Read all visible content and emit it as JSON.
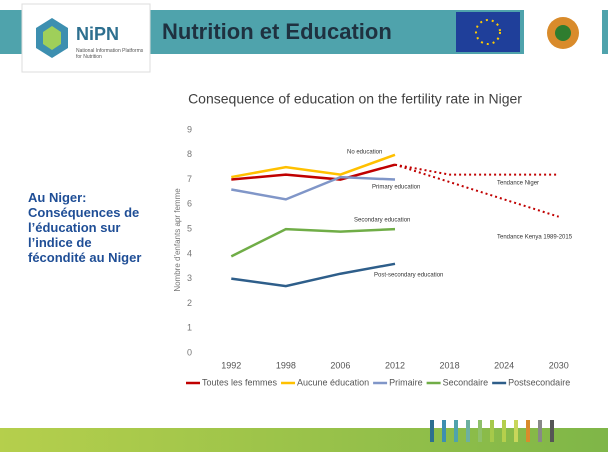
{
  "header": {
    "logo_name": "NiPN",
    "logo_subtitle": "National Information Platforms for Nutrition",
    "title": "Nutrition et Education"
  },
  "side_text": "Au Niger: Conséquences de l’éducation sur l’indice de fécondité au Niger",
  "chart_data": {
    "type": "line",
    "title": "Consequence of education on the fertility rate in Niger",
    "y_label": "Nombre d'enfants apr femme",
    "categories": [
      "1992",
      "1998",
      "2006",
      "2012",
      "2018",
      "2024",
      "2030"
    ],
    "series": [
      {
        "name": "Toutes les femmes",
        "color": "#c00000",
        "values": [
          7.0,
          7.2,
          7.0,
          7.6,
          null,
          null,
          null
        ]
      },
      {
        "name": "Aucune éducation",
        "color": "#ffc000",
        "values": [
          7.1,
          7.5,
          7.2,
          8.0,
          null,
          null,
          null
        ]
      },
      {
        "name": "Primaire",
        "color": "#8096c8",
        "values": [
          6.6,
          6.2,
          7.1,
          7.0,
          null,
          null,
          null
        ]
      },
      {
        "name": "Secondaire",
        "color": "#70ad47",
        "values": [
          3.9,
          5.0,
          4.9,
          5.0,
          null,
          null,
          null
        ]
      },
      {
        "name": "Postsecondaire",
        "color": "#2e5e8a",
        "values": [
          3.0,
          2.7,
          3.2,
          3.6,
          null,
          null,
          null
        ]
      }
    ],
    "trends": [
      {
        "name": "Tendance Niger",
        "color": "#c00000",
        "values": [
          null,
          null,
          null,
          7.6,
          7.2,
          7.2,
          7.2
        ]
      },
      {
        "name": "Tendance Kenya 1989-2015",
        "color": "#c00000",
        "values": [
          null,
          null,
          null,
          7.6,
          6.9,
          6.2,
          5.5
        ]
      }
    ],
    "annotations": [
      "No education",
      "Primary education",
      "Secondary education",
      "Post-secondary education"
    ],
    "ylim": [
      0,
      9
    ],
    "yticks": [
      0,
      1,
      2,
      3,
      4,
      5,
      6,
      7,
      8,
      9
    ],
    "grid": false
  }
}
